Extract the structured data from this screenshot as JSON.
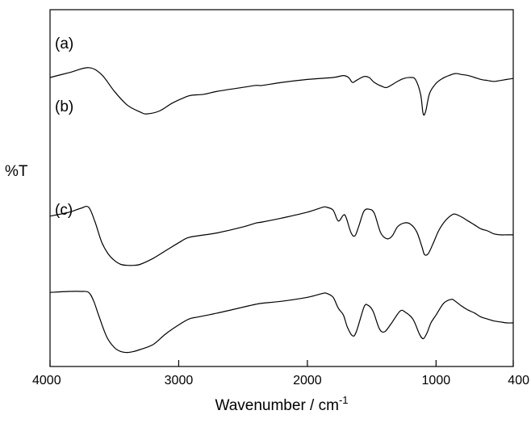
{
  "chart_data": {
    "type": "line",
    "title": "",
    "xlabel": "Wavenumber / cm",
    "xlabel_superscript": "-1",
    "ylabel": "%T",
    "xlim": [
      4000,
      400
    ],
    "x_reversed": true,
    "y_ticks_shown": false,
    "grid": false,
    "xticks": [
      4000,
      3000,
      2000,
      1000,
      400
    ],
    "xtick_labels": [
      "4000",
      "3000",
      "2000",
      "1000",
      "400"
    ],
    "series": [
      {
        "name": "(a)",
        "label": "(a)",
        "points": [
          [
            4000,
            82
          ],
          [
            3850,
            87
          ],
          [
            3700,
            92
          ],
          [
            3600,
            85
          ],
          [
            3500,
            68
          ],
          [
            3400,
            54
          ],
          [
            3300,
            47
          ],
          [
            3250,
            45
          ],
          [
            3150,
            48
          ],
          [
            3050,
            56
          ],
          [
            2950,
            62
          ],
          [
            2900,
            64
          ],
          [
            2800,
            65
          ],
          [
            2700,
            68
          ],
          [
            2500,
            72
          ],
          [
            2400,
            74
          ],
          [
            2350,
            74
          ],
          [
            2200,
            77
          ],
          [
            2000,
            80
          ],
          [
            1800,
            82
          ],
          [
            1720,
            84
          ],
          [
            1680,
            82
          ],
          [
            1650,
            77
          ],
          [
            1620,
            79
          ],
          [
            1560,
            83
          ],
          [
            1520,
            82
          ],
          [
            1480,
            77
          ],
          [
            1420,
            73
          ],
          [
            1380,
            72
          ],
          [
            1300,
            78
          ],
          [
            1250,
            81
          ],
          [
            1200,
            82
          ],
          [
            1160,
            80
          ],
          [
            1120,
            65
          ],
          [
            1100,
            45
          ],
          [
            1080,
            48
          ],
          [
            1050,
            66
          ],
          [
            1000,
            76
          ],
          [
            950,
            81
          ],
          [
            900,
            84
          ],
          [
            850,
            86
          ],
          [
            800,
            85
          ],
          [
            750,
            84
          ],
          [
            700,
            82
          ],
          [
            650,
            80
          ],
          [
            600,
            79
          ],
          [
            550,
            78
          ],
          [
            500,
            79
          ],
          [
            450,
            80
          ],
          [
            400,
            81
          ]
        ]
      },
      {
        "name": "(b)",
        "label": "(b)",
        "points": [
          [
            4000,
            56
          ],
          [
            3850,
            60
          ],
          [
            3760,
            64
          ],
          [
            3700,
            65
          ],
          [
            3650,
            50
          ],
          [
            3600,
            30
          ],
          [
            3550,
            18
          ],
          [
            3500,
            11
          ],
          [
            3450,
            7
          ],
          [
            3400,
            6
          ],
          [
            3350,
            6
          ],
          [
            3300,
            7
          ],
          [
            3200,
            13
          ],
          [
            3100,
            21
          ],
          [
            3000,
            29
          ],
          [
            2930,
            34
          ],
          [
            2850,
            36
          ],
          [
            2700,
            39
          ],
          [
            2500,
            45
          ],
          [
            2400,
            49
          ],
          [
            2350,
            50
          ],
          [
            2200,
            54
          ],
          [
            2000,
            60
          ],
          [
            1880,
            65
          ],
          [
            1850,
            65
          ],
          [
            1800,
            62
          ],
          [
            1760,
            51
          ],
          [
            1720,
            57
          ],
          [
            1700,
            55
          ],
          [
            1660,
            39
          ],
          [
            1630,
            36
          ],
          [
            1600,
            46
          ],
          [
            1560,
            61
          ],
          [
            1520,
            63
          ],
          [
            1480,
            59
          ],
          [
            1430,
            39
          ],
          [
            1380,
            33
          ],
          [
            1340,
            36
          ],
          [
            1300,
            45
          ],
          [
            1250,
            49
          ],
          [
            1200,
            48
          ],
          [
            1150,
            40
          ],
          [
            1110,
            25
          ],
          [
            1090,
            17
          ],
          [
            1060,
            18
          ],
          [
            1020,
            29
          ],
          [
            980,
            41
          ],
          [
            930,
            51
          ],
          [
            880,
            57
          ],
          [
            850,
            58
          ],
          [
            800,
            55
          ],
          [
            750,
            51
          ],
          [
            700,
            47
          ],
          [
            650,
            43
          ],
          [
            600,
            41
          ],
          [
            550,
            38
          ],
          [
            500,
            37
          ],
          [
            450,
            37
          ],
          [
            400,
            37
          ]
        ]
      },
      {
        "name": "(c)",
        "label": "(c)",
        "points": [
          [
            4000,
            31
          ],
          [
            3850,
            32
          ],
          [
            3760,
            32
          ],
          [
            3700,
            31
          ],
          [
            3660,
            22
          ],
          [
            3620,
            7
          ],
          [
            3560,
            -14
          ],
          [
            3500,
            -25
          ],
          [
            3450,
            -29
          ],
          [
            3400,
            -30
          ],
          [
            3350,
            -29
          ],
          [
            3300,
            -27
          ],
          [
            3200,
            -22
          ],
          [
            3100,
            -11
          ],
          [
            3000,
            -2
          ],
          [
            2920,
            4
          ],
          [
            2850,
            6
          ],
          [
            2700,
            10
          ],
          [
            2500,
            16
          ],
          [
            2400,
            19
          ],
          [
            2350,
            20
          ],
          [
            2200,
            22
          ],
          [
            2000,
            26
          ],
          [
            1880,
            30
          ],
          [
            1850,
            30
          ],
          [
            1800,
            26
          ],
          [
            1760,
            15
          ],
          [
            1720,
            8
          ],
          [
            1690,
            -4
          ],
          [
            1650,
            -13
          ],
          [
            1620,
            -9
          ],
          [
            1560,
            16
          ],
          [
            1530,
            18
          ],
          [
            1490,
            12
          ],
          [
            1440,
            -6
          ],
          [
            1400,
            -9
          ],
          [
            1350,
            -1
          ],
          [
            1280,
            12
          ],
          [
            1240,
            11
          ],
          [
            1180,
            4
          ],
          [
            1130,
            -11
          ],
          [
            1100,
            -16
          ],
          [
            1070,
            -10
          ],
          [
            1040,
            0
          ],
          [
            1000,
            8
          ],
          [
            940,
            20
          ],
          [
            880,
            24
          ],
          [
            850,
            22
          ],
          [
            800,
            17
          ],
          [
            750,
            13
          ],
          [
            700,
            10
          ],
          [
            650,
            6
          ],
          [
            600,
            4
          ],
          [
            550,
            2
          ],
          [
            500,
            1
          ],
          [
            450,
            0
          ],
          [
            400,
            0
          ]
        ]
      }
    ]
  }
}
